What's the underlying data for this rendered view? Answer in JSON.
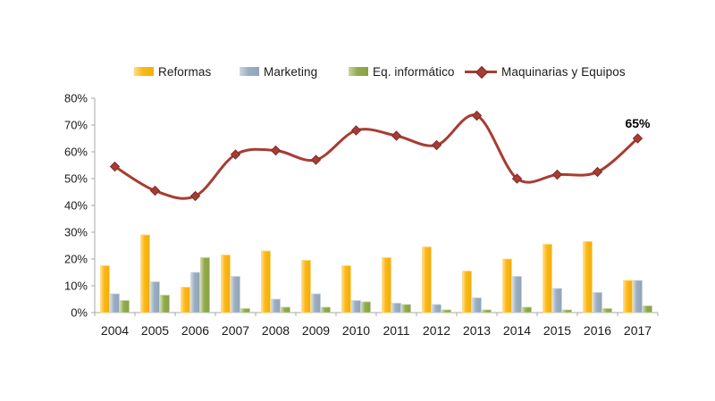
{
  "chart_data": {
    "type": "combo-bar-line",
    "title": "",
    "categories": [
      "2004",
      "2005",
      "2006",
      "2007",
      "2008",
      "2009",
      "2010",
      "2011",
      "2012",
      "2013",
      "2014",
      "2015",
      "2016",
      "2017"
    ],
    "bar_series": [
      {
        "name": "Reformas",
        "color": "#FDB813",
        "values": [
          17.5,
          29,
          9.5,
          21.5,
          23,
          19.5,
          17.5,
          20.5,
          24.5,
          15.5,
          20,
          25.5,
          26.5,
          12
        ]
      },
      {
        "name": "Marketing",
        "color": "#9AAEC2",
        "values": [
          7,
          11.5,
          15,
          13.5,
          5,
          7,
          4.5,
          3.5,
          3,
          5.5,
          13.5,
          9,
          7.5,
          12
        ]
      },
      {
        "name": "Eq. informático",
        "color": "#91AB4B",
        "values": [
          4.5,
          6.5,
          20.5,
          1.5,
          2,
          2,
          4,
          3,
          1,
          1,
          2,
          1,
          1.5,
          2.5
        ]
      }
    ],
    "line_series": {
      "name": "Maquinarias y Equipos",
      "color": "#A83C32",
      "marker": "diamond",
      "smooth": true,
      "values": [
        54.5,
        45.5,
        43.5,
        59,
        60.5,
        57,
        68,
        66,
        62.5,
        73.5,
        50,
        51.5,
        52.5,
        65
      ]
    },
    "annotation": {
      "text": "65%",
      "category": "2017"
    },
    "y_axis": {
      "min": 0,
      "max": 80,
      "step": 10,
      "grid": false,
      "tick_labels": [
        "0%",
        "10%",
        "20%",
        "30%",
        "40%",
        "50%",
        "60%",
        "70%",
        "80%"
      ]
    },
    "x_axis": {
      "tick_labels": [
        "2004",
        "2005",
        "2006",
        "2007",
        "2008",
        "2009",
        "2010",
        "2011",
        "2012",
        "2013",
        "2014",
        "2015",
        "2016",
        "2017"
      ]
    },
    "legend_position": "top",
    "colors": {
      "axis": "#A8A8A8",
      "text": "#1A1A1A",
      "background": "#FFFFFF"
    }
  }
}
